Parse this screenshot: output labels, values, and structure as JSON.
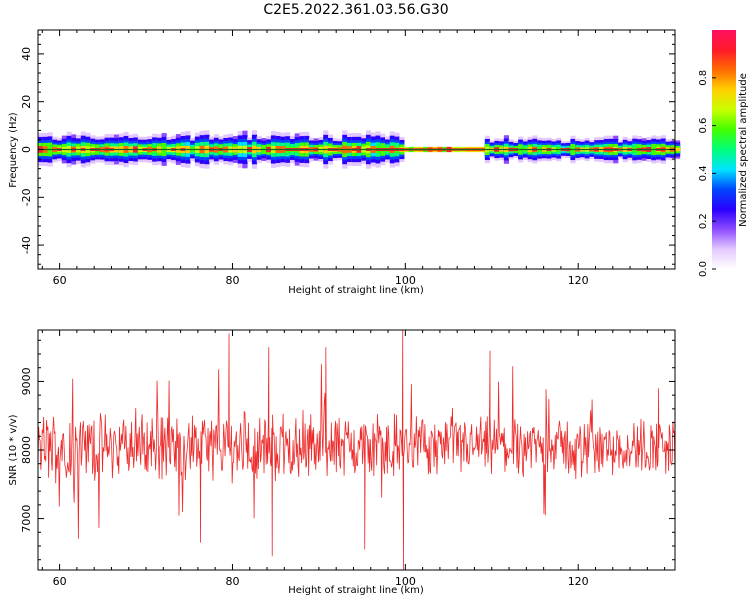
{
  "title": "C2E5.2022.361.03.56.G30",
  "colors": {
    "snr_line": "#ee2b2b",
    "zero_line": "#1f5c1f",
    "colormap": [
      "#ffffff",
      "#e3c8ff",
      "#8c4bff",
      "#2a00ff",
      "#0047ff",
      "#00e5ff",
      "#00ff7a",
      "#44ff00",
      "#c8ff00",
      "#ffd000",
      "#ff6a00",
      "#ff1a2a",
      "#ff1060"
    ]
  },
  "chart_data": [
    {
      "type": "heatmap",
      "name": "spectrogram",
      "xlabel": "Height of straight line (km)",
      "ylabel": "Frequency (Hz)",
      "xlim": [
        57.5,
        131.2
      ],
      "ylim": [
        -50,
        50
      ],
      "xticks": [
        60,
        80,
        100,
        120
      ],
      "yticks": [
        -40,
        -20,
        0,
        20,
        40
      ],
      "colorbar": {
        "label": "Normalized spectral amplitude",
        "range": [
          0,
          1
        ],
        "ticks": [
          "0.0",
          "0.2",
          "0.4",
          "0.6",
          "0.8"
        ]
      },
      "description_values": {
        "center_frequency_hz": 0,
        "segments": [
          {
            "x_start": 57.5,
            "x_end": 99.5,
            "half_width_hz": 4,
            "pattern": "broad"
          },
          {
            "x_start": 99.5,
            "x_end": 109.0,
            "half_width_hz": 1,
            "pattern": "narrow"
          },
          {
            "x_start": 109.0,
            "x_end": 131.2,
            "half_width_hz": 3,
            "pattern": "broad"
          }
        ]
      }
    },
    {
      "type": "line",
      "name": "snr",
      "xlabel": "Height of straight line (km)",
      "ylabel": "SNR (10 * v/v)",
      "xlim": [
        57.5,
        131.2
      ],
      "ylim": [
        6250,
        9750
      ],
      "xticks": [
        60,
        80,
        100,
        120
      ],
      "yticks": [
        7000,
        8000,
        9000
      ],
      "mean": 8050,
      "notable_points": [
        {
          "x": 79.6,
          "y": 9700
        },
        {
          "x": 84.2,
          "y": 9500
        },
        {
          "x": 84.6,
          "y": 6450
        },
        {
          "x": 76.3,
          "y": 6650
        },
        {
          "x": 90.8,
          "y": 9500
        },
        {
          "x": 95.3,
          "y": 6550
        },
        {
          "x": 99.7,
          "y": 9750
        },
        {
          "x": 99.8,
          "y": 6250
        },
        {
          "x": 109.8,
          "y": 9450
        },
        {
          "x": 129.3,
          "y": 8900
        }
      ]
    }
  ]
}
